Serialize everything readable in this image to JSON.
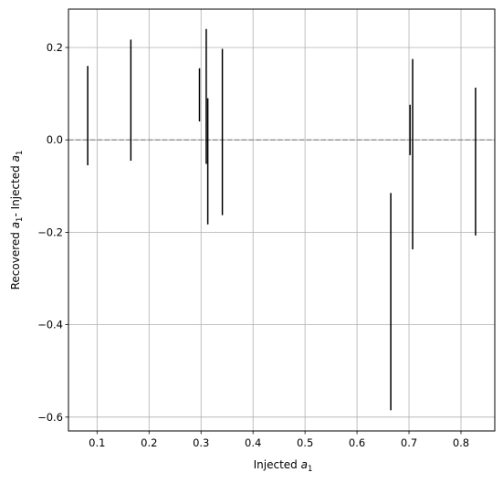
{
  "chart_data": {
    "type": "errorbar",
    "xlabel": {
      "main": "Injected ",
      "var": "a",
      "sub": "1"
    },
    "ylabel": {
      "main": "Recovered ",
      "var": "a",
      "sub": "1",
      "rest": "- Injected ",
      "var2": "a",
      "sub2": "1"
    },
    "xlim": [
      0.045,
      0.865
    ],
    "ylim": [
      -0.63,
      0.283
    ],
    "xticks": [
      0.1,
      0.2,
      0.3,
      0.4,
      0.5,
      0.6,
      0.7,
      0.8
    ],
    "xtick_labels": [
      "0.1",
      "0.2",
      "0.3",
      "0.4",
      "0.5",
      "0.6",
      "0.7",
      "0.8"
    ],
    "yticks": [
      0.2,
      0.0,
      -0.2,
      -0.4,
      -0.6
    ],
    "ytick_labels": [
      "0.2",
      "0.0",
      "−0.2",
      "−0.4",
      "−0.6"
    ],
    "grid": true,
    "reference_line": {
      "y": 0.0,
      "style": "dashed",
      "color": "#999999"
    },
    "bar_color": "#000000",
    "points": [
      {
        "x": 0.082,
        "low": -0.055,
        "high": 0.16
      },
      {
        "x": 0.165,
        "low": -0.045,
        "high": 0.217
      },
      {
        "x": 0.297,
        "low": 0.04,
        "high": 0.155
      },
      {
        "x": 0.31,
        "low": -0.052,
        "high": 0.24
      },
      {
        "x": 0.313,
        "low": -0.183,
        "high": 0.09
      },
      {
        "x": 0.341,
        "low": -0.163,
        "high": 0.197
      },
      {
        "x": 0.665,
        "low": -0.585,
        "high": -0.115
      },
      {
        "x": 0.702,
        "low": -0.033,
        "high": 0.076
      },
      {
        "x": 0.707,
        "low": -0.237,
        "high": 0.175
      },
      {
        "x": 0.828,
        "low": -0.207,
        "high": 0.113
      }
    ]
  }
}
